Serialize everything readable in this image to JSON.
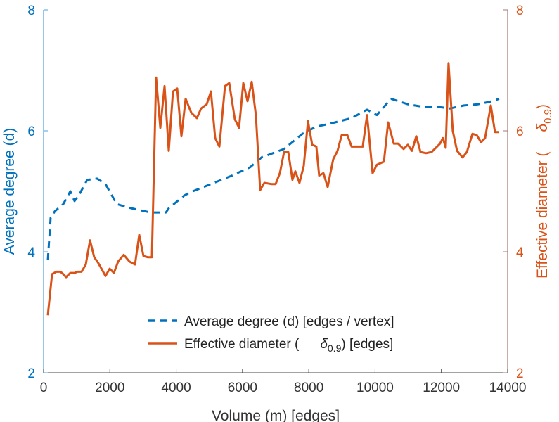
{
  "chart_data": {
    "type": "line",
    "xlabel": "Volume (m) [edges]",
    "ylabel_left": "Average degree (d)",
    "ylabel_right_prefix": "Effective diameter (",
    "ylabel_right_symbol": "δ",
    "ylabel_right_sub": "0.9",
    "ylabel_right_suffix": ")",
    "xlim": [
      0,
      14000
    ],
    "ylim_left": [
      2,
      8
    ],
    "ylim_right": [
      2,
      8
    ],
    "xticks": [
      "0",
      "2000",
      "4000",
      "6000",
      "8000",
      "10000",
      "12000",
      "14000"
    ],
    "xtick_values": [
      0,
      2000,
      4000,
      6000,
      8000,
      10000,
      12000,
      14000
    ],
    "yticks_left": [
      "2",
      "4",
      "6",
      "8"
    ],
    "yticks_right": [
      "2",
      "4",
      "6",
      "8"
    ],
    "ytick_values": [
      2,
      4,
      6,
      8
    ],
    "grid": false,
    "legend_placement": "bottom-center",
    "colors": {
      "left": "#0072BD",
      "right": "#D95319",
      "left_axis": "#4DA3DD",
      "right_axis": "#A07870"
    },
    "series": [
      {
        "name": "Average degree (d) [edges / vertex]",
        "axis": "left",
        "style": "dashed",
        "x": [
          127,
          212,
          339,
          594,
          806,
          933,
          1061,
          1315,
          1612,
          1866,
          2206,
          2503,
          2800,
          3224,
          3691,
          3775,
          4242,
          4412,
          5048,
          5684,
          6236,
          6575,
          6915,
          7254,
          7806,
          8229,
          8653,
          9290,
          9757,
          10054,
          10478,
          10987,
          11411,
          11835,
          12260,
          12684,
          13108,
          13532,
          13744
        ],
        "y": [
          3.86,
          4.56,
          4.67,
          4.79,
          5.0,
          4.84,
          4.93,
          5.19,
          5.21,
          5.12,
          4.79,
          4.74,
          4.7,
          4.65,
          4.65,
          4.72,
          4.93,
          4.98,
          5.12,
          5.26,
          5.4,
          5.56,
          5.63,
          5.7,
          5.95,
          6.07,
          6.12,
          6.21,
          6.35,
          6.26,
          6.53,
          6.44,
          6.4,
          6.4,
          6.37,
          6.42,
          6.44,
          6.49,
          6.53
        ]
      },
      {
        "name_prefix": "Effective diameter (",
        "name_symbol": "δ",
        "name_sub": "0.9",
        "name_suffix": ") [edges]",
        "axis": "right",
        "style": "solid",
        "x": [
          127,
          255,
          382,
          509,
          594,
          679,
          806,
          933,
          1018,
          1145,
          1273,
          1400,
          1527,
          1654,
          1866,
          1994,
          2121,
          2248,
          2418,
          2588,
          2757,
          2885,
          3012,
          3139,
          3266,
          3394,
          3521,
          3648,
          3775,
          3903,
          4030,
          4157,
          4284,
          4454,
          4624,
          4751,
          4921,
          5048,
          5175,
          5302,
          5472,
          5599,
          5769,
          5896,
          6024,
          6151,
          6278,
          6405,
          6533,
          6660,
          6872,
          6999,
          7127,
          7254,
          7381,
          7508,
          7593,
          7720,
          7848,
          7975,
          8102,
          8229,
          8314,
          8442,
          8569,
          8653,
          8738,
          8866,
          8993,
          9163,
          9290,
          9460,
          9629,
          9757,
          9926,
          10054,
          10266,
          10393,
          10563,
          10690,
          10860,
          10987,
          11114,
          11242,
          11369,
          11538,
          11708,
          11835,
          11962,
          12047,
          12132,
          12217,
          12344,
          12472,
          12641,
          12769,
          12938,
          13066,
          13193,
          13320,
          13490,
          13617,
          13744
        ],
        "y": [
          2.95,
          3.63,
          3.67,
          3.67,
          3.63,
          3.58,
          3.65,
          3.65,
          3.67,
          3.67,
          3.79,
          4.19,
          3.91,
          3.81,
          3.6,
          3.72,
          3.65,
          3.84,
          3.95,
          3.84,
          3.79,
          4.28,
          3.93,
          3.91,
          3.91,
          6.88,
          6.05,
          6.74,
          5.67,
          6.65,
          6.7,
          5.91,
          6.53,
          6.3,
          6.21,
          6.37,
          6.44,
          6.65,
          5.88,
          5.74,
          6.74,
          6.79,
          6.19,
          6.05,
          6.79,
          6.49,
          6.81,
          6.26,
          5.02,
          5.14,
          5.12,
          5.12,
          5.3,
          5.65,
          5.65,
          5.19,
          5.33,
          5.14,
          5.42,
          6.16,
          5.77,
          5.74,
          5.26,
          5.3,
          5.07,
          5.3,
          5.53,
          5.67,
          5.93,
          5.93,
          5.74,
          5.74,
          5.74,
          6.26,
          5.3,
          5.44,
          5.49,
          6.14,
          5.79,
          5.79,
          5.7,
          5.77,
          5.67,
          5.91,
          5.65,
          5.63,
          5.65,
          5.72,
          5.79,
          5.88,
          5.72,
          7.12,
          6.0,
          5.67,
          5.56,
          5.65,
          5.95,
          5.93,
          5.81,
          5.88,
          6.42,
          5.98,
          5.98
        ]
      }
    ]
  }
}
